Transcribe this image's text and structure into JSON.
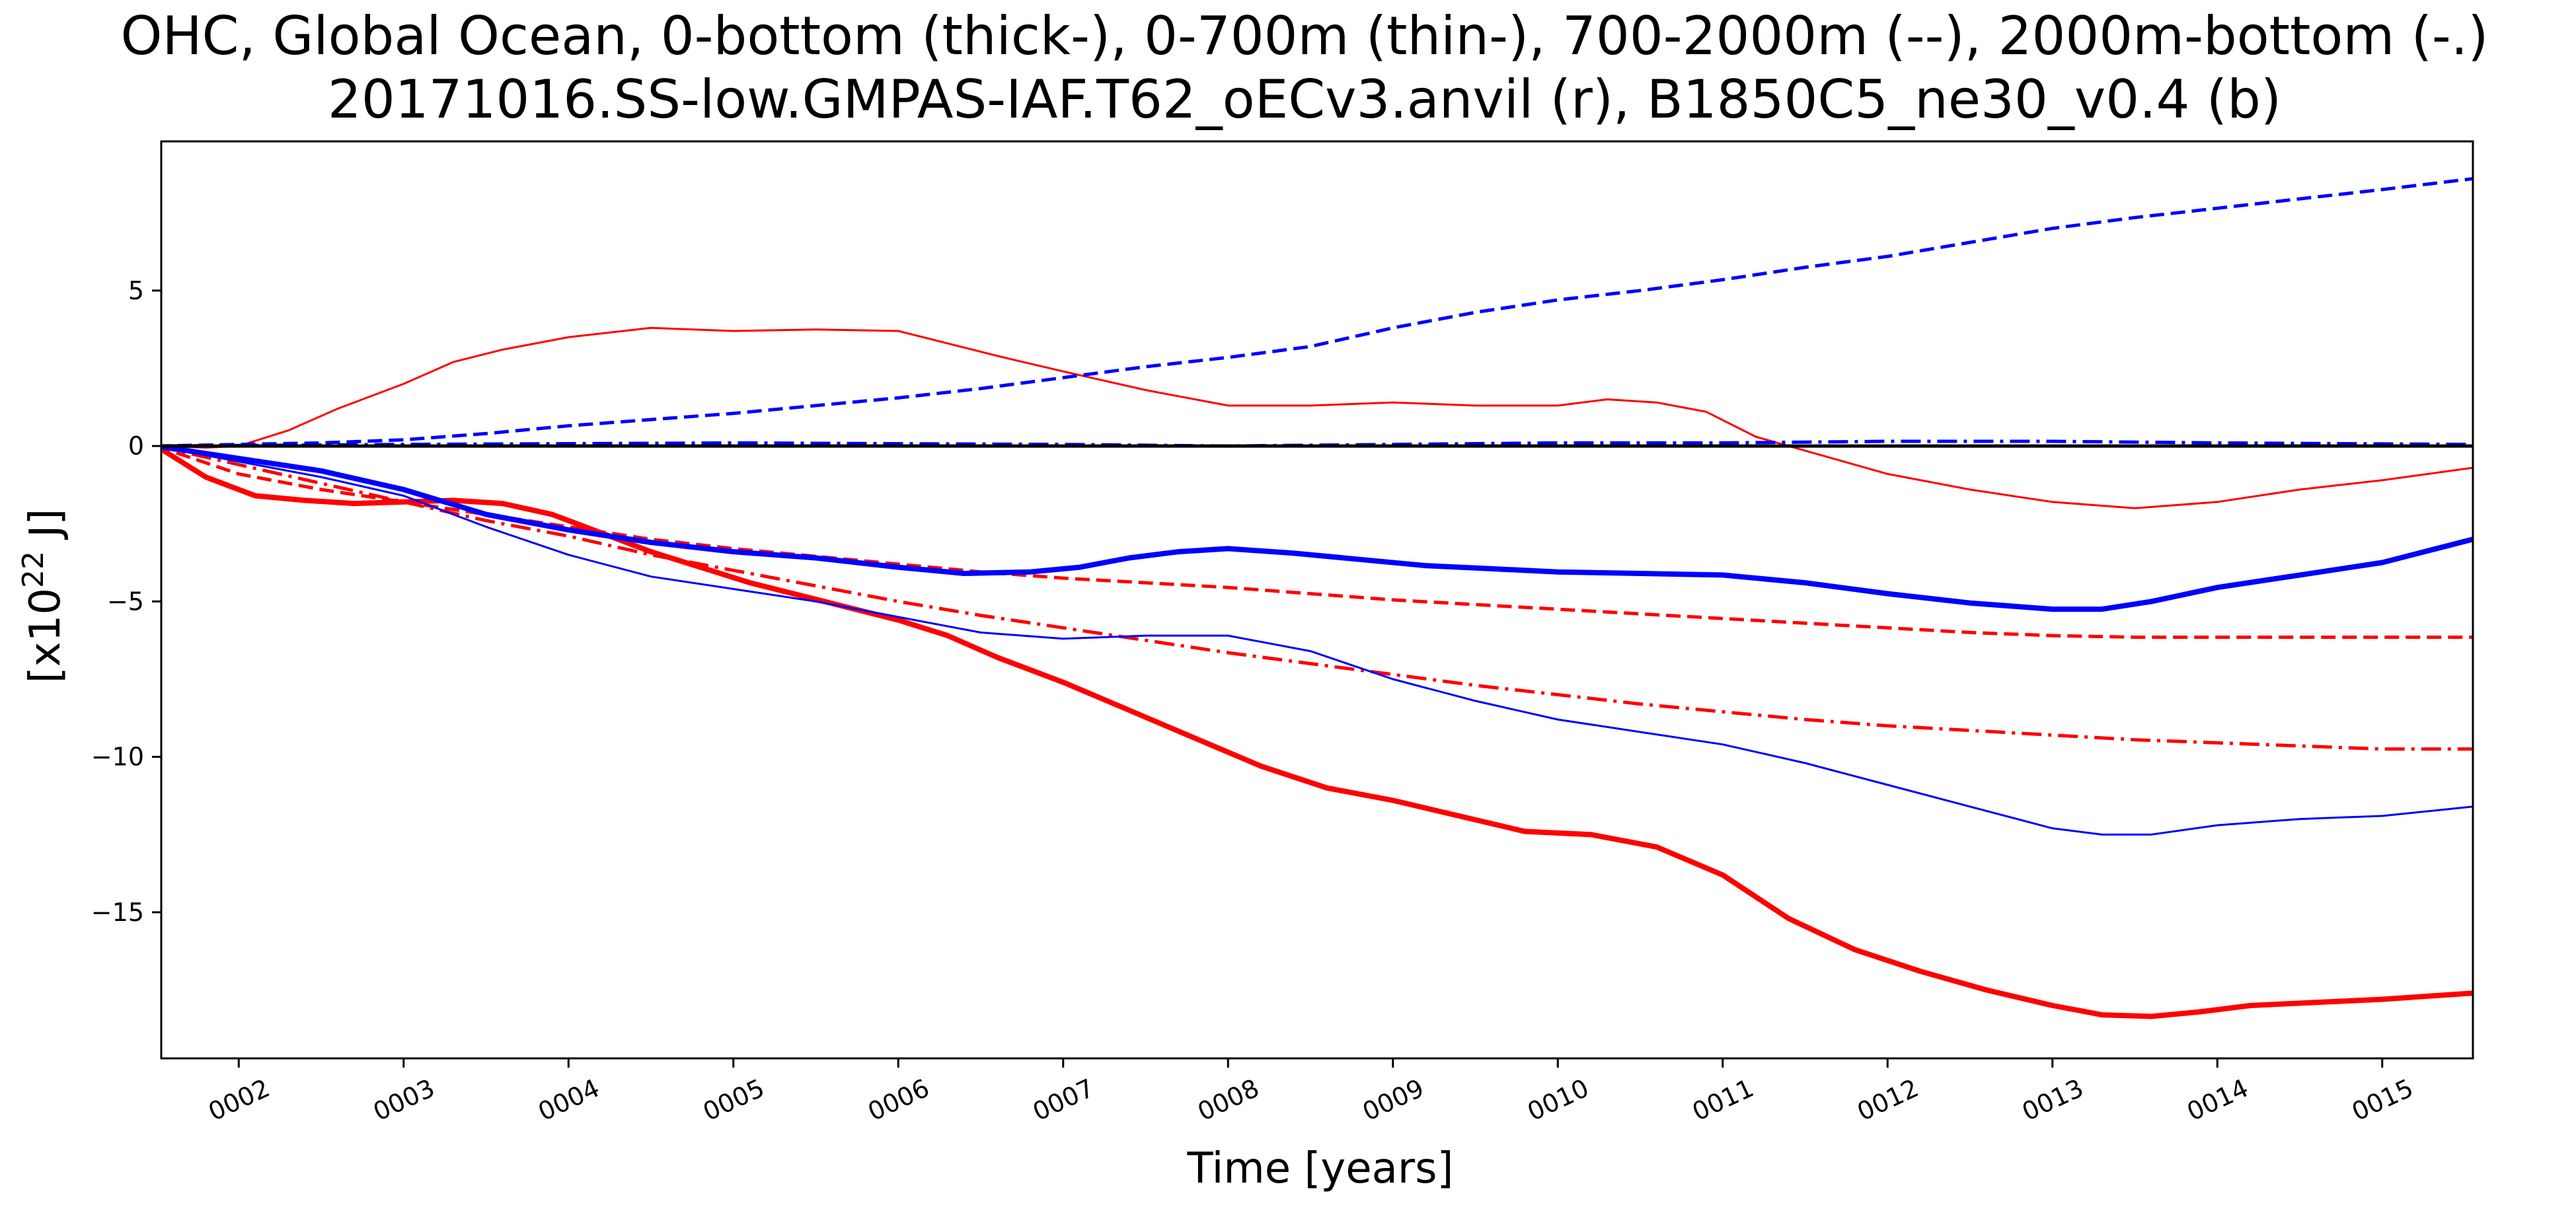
{
  "chart_data": {
    "type": "line",
    "title_line1": "OHC, Global Ocean, 0-bottom (thick-), 0-700m (thin-), 700-2000m (--), 2000m-bottom (-.)",
    "title_line2": "20171016.SS-low.GMPAS-IAF.T62_oECv3.anvil (r), B1850C5_ne30_v0.4 (b)",
    "xlabel": "Time [years]",
    "ylabel_prefix": "[x10",
    "ylabel_exponent": "22",
    "ylabel_suffix": " J]",
    "xlim": [
      1.53,
      15.55
    ],
    "ylim": [
      -19.7,
      9.8
    ],
    "xticks": [
      {
        "value": 2,
        "label": "0002"
      },
      {
        "value": 3,
        "label": "0003"
      },
      {
        "value": 4,
        "label": "0004"
      },
      {
        "value": 5,
        "label": "0005"
      },
      {
        "value": 6,
        "label": "0006"
      },
      {
        "value": 7,
        "label": "0007"
      },
      {
        "value": 8,
        "label": "0008"
      },
      {
        "value": 9,
        "label": "0009"
      },
      {
        "value": 10,
        "label": "0010"
      },
      {
        "value": 11,
        "label": "0011"
      },
      {
        "value": 12,
        "label": "0012"
      },
      {
        "value": 13,
        "label": "0013"
      },
      {
        "value": 14,
        "label": "0014"
      },
      {
        "value": 15,
        "label": "0015"
      }
    ],
    "yticks": [
      {
        "value": 5,
        "label": "5"
      },
      {
        "value": 0,
        "label": "0"
      },
      {
        "value": -5,
        "label": "−5"
      },
      {
        "value": -10,
        "label": "−10"
      },
      {
        "value": -15,
        "label": "−15"
      }
    ],
    "grid": false,
    "zero_line": {
      "y": 0,
      "color": "#000000"
    },
    "series": [
      {
        "color": "#ff0000",
        "style": "solid",
        "weight": "thick",
        "x": [
          1.5,
          1.8,
          2.1,
          2.4,
          2.7,
          3.0,
          3.3,
          3.6,
          3.9,
          4.2,
          4.5,
          4.8,
          5.1,
          5.4,
          5.7,
          6.0,
          6.3,
          6.6,
          7.0,
          7.4,
          7.8,
          8.2,
          8.6,
          9.0,
          9.4,
          9.8,
          10.2,
          10.6,
          11.0,
          11.4,
          11.8,
          12.2,
          12.6,
          13.0,
          13.3,
          13.6,
          13.9,
          14.2,
          14.6,
          15.0,
          15.55
        ],
        "y": [
          0,
          -1.0,
          -1.6,
          -1.75,
          -1.85,
          -1.8,
          -1.75,
          -1.85,
          -2.2,
          -2.8,
          -3.4,
          -3.9,
          -4.4,
          -4.8,
          -5.2,
          -5.6,
          -6.1,
          -6.8,
          -7.6,
          -8.5,
          -9.4,
          -10.3,
          -11.0,
          -11.4,
          -11.9,
          -12.4,
          -12.5,
          -12.9,
          -13.8,
          -15.2,
          -16.2,
          -16.9,
          -17.5,
          -18.0,
          -18.3,
          -18.35,
          -18.2,
          -18.0,
          -17.9,
          -17.8,
          -17.6
        ]
      },
      {
        "color": "#ff0000",
        "style": "solid",
        "weight": "thin",
        "x": [
          1.5,
          1.8,
          2.0,
          2.3,
          2.6,
          3.0,
          3.3,
          3.6,
          4.0,
          4.5,
          5.0,
          5.5,
          6.0,
          6.3,
          6.6,
          7.0,
          7.5,
          8.0,
          8.5,
          9.0,
          9.5,
          10.0,
          10.3,
          10.6,
          10.9,
          11.2,
          11.6,
          12.0,
          12.5,
          13.0,
          13.5,
          14.0,
          14.5,
          15.0,
          15.55
        ],
        "y": [
          0,
          -0.05,
          0,
          0.5,
          1.2,
          2.0,
          2.7,
          3.1,
          3.5,
          3.8,
          3.7,
          3.75,
          3.7,
          3.3,
          2.9,
          2.4,
          1.8,
          1.3,
          1.3,
          1.4,
          1.3,
          1.3,
          1.5,
          1.4,
          1.1,
          0.3,
          -0.3,
          -0.9,
          -1.4,
          -1.8,
          -2.0,
          -1.8,
          -1.4,
          -1.1,
          -0.7
        ]
      },
      {
        "color": "#ff0000",
        "style": "dashed",
        "weight": "normal",
        "x": [
          1.5,
          2.0,
          2.5,
          3.0,
          3.5,
          4.0,
          4.5,
          5.0,
          5.5,
          6.0,
          6.5,
          7.0,
          7.5,
          8.0,
          8.5,
          9.0,
          9.5,
          10.0,
          10.5,
          11.0,
          11.5,
          12.0,
          12.5,
          13.0,
          13.5,
          14.0,
          14.5,
          15.0,
          15.55
        ],
        "y": [
          0,
          -0.9,
          -1.4,
          -1.8,
          -2.2,
          -2.6,
          -3.0,
          -3.3,
          -3.55,
          -3.8,
          -4.05,
          -4.25,
          -4.4,
          -4.55,
          -4.75,
          -4.95,
          -5.1,
          -5.25,
          -5.4,
          -5.55,
          -5.7,
          -5.85,
          -6.0,
          -6.1,
          -6.15,
          -6.15,
          -6.15,
          -6.15,
          -6.15
        ]
      },
      {
        "color": "#ff0000",
        "style": "dashdot",
        "weight": "normal",
        "x": [
          1.5,
          2.0,
          2.5,
          3.0,
          3.5,
          4.0,
          4.5,
          5.0,
          5.5,
          6.0,
          6.5,
          7.0,
          7.5,
          8.0,
          8.5,
          9.0,
          9.5,
          10.0,
          10.5,
          11.0,
          11.5,
          12.0,
          12.5,
          13.0,
          13.5,
          14.0,
          14.5,
          15.0,
          15.55
        ],
        "y": [
          0,
          -0.6,
          -1.2,
          -1.8,
          -2.4,
          -2.9,
          -3.5,
          -4.0,
          -4.5,
          -5.0,
          -5.45,
          -5.85,
          -6.25,
          -6.65,
          -7.0,
          -7.35,
          -7.7,
          -8.0,
          -8.3,
          -8.55,
          -8.8,
          -9.0,
          -9.15,
          -9.3,
          -9.45,
          -9.55,
          -9.65,
          -9.75,
          -9.75
        ]
      },
      {
        "color": "#0000ff",
        "style": "solid",
        "weight": "thick",
        "x": [
          1.5,
          2.0,
          2.5,
          3.0,
          3.5,
          4.0,
          4.5,
          5.0,
          5.5,
          6.0,
          6.4,
          6.8,
          7.1,
          7.4,
          7.7,
          8.0,
          8.4,
          8.8,
          9.2,
          9.6,
          10.0,
          10.5,
          11.0,
          11.5,
          12.0,
          12.5,
          13.0,
          13.3,
          13.6,
          14.0,
          14.5,
          15.0,
          15.55
        ],
        "y": [
          0,
          -0.4,
          -0.8,
          -1.4,
          -2.2,
          -2.7,
          -3.1,
          -3.4,
          -3.6,
          -3.9,
          -4.1,
          -4.05,
          -3.9,
          -3.6,
          -3.4,
          -3.3,
          -3.45,
          -3.65,
          -3.85,
          -3.95,
          -4.05,
          -4.1,
          -4.15,
          -4.4,
          -4.75,
          -5.05,
          -5.25,
          -5.25,
          -5.0,
          -4.55,
          -4.15,
          -3.75,
          -3.0
        ]
      },
      {
        "color": "#0000ff",
        "style": "solid",
        "weight": "thin",
        "x": [
          1.5,
          2.0,
          2.5,
          3.0,
          3.5,
          4.0,
          4.5,
          5.0,
          5.5,
          6.0,
          6.5,
          7.0,
          7.5,
          8.0,
          8.5,
          9.0,
          9.5,
          10.0,
          10.5,
          11.0,
          11.5,
          12.0,
          12.5,
          13.0,
          13.3,
          13.6,
          14.0,
          14.5,
          15.0,
          15.55
        ],
        "y": [
          0,
          -0.5,
          -1.0,
          -1.6,
          -2.6,
          -3.5,
          -4.2,
          -4.6,
          -5.0,
          -5.5,
          -6.0,
          -6.2,
          -6.1,
          -6.1,
          -6.6,
          -7.5,
          -8.2,
          -8.8,
          -9.2,
          -9.6,
          -10.2,
          -10.9,
          -11.6,
          -12.3,
          -12.5,
          -12.5,
          -12.2,
          -12.0,
          -11.9,
          -11.6
        ]
      },
      {
        "color": "#0000ff",
        "style": "dashed",
        "weight": "normal",
        "x": [
          1.5,
          2.0,
          2.5,
          3.0,
          3.5,
          4.0,
          4.5,
          5.0,
          5.5,
          6.0,
          6.5,
          7.0,
          7.5,
          8.0,
          8.5,
          9.0,
          9.5,
          10.0,
          10.5,
          11.0,
          11.5,
          12.0,
          12.5,
          13.0,
          13.5,
          14.0,
          14.5,
          15.0,
          15.55
        ],
        "y": [
          0,
          0.05,
          0.1,
          0.2,
          0.4,
          0.65,
          0.85,
          1.05,
          1.3,
          1.55,
          1.85,
          2.2,
          2.55,
          2.85,
          3.2,
          3.8,
          4.3,
          4.7,
          5.0,
          5.35,
          5.75,
          6.1,
          6.55,
          7.0,
          7.35,
          7.65,
          7.95,
          8.25,
          8.6
        ]
      },
      {
        "color": "#0000ff",
        "style": "dashdot",
        "weight": "normal",
        "x": [
          1.5,
          3.0,
          5.0,
          7.0,
          8.0,
          9.0,
          10.0,
          11.0,
          12.0,
          13.0,
          14.0,
          15.55
        ],
        "y": [
          0,
          0.05,
          0.1,
          0.05,
          0.0,
          0.05,
          0.1,
          0.1,
          0.15,
          0.15,
          0.1,
          0.05
        ]
      }
    ]
  }
}
